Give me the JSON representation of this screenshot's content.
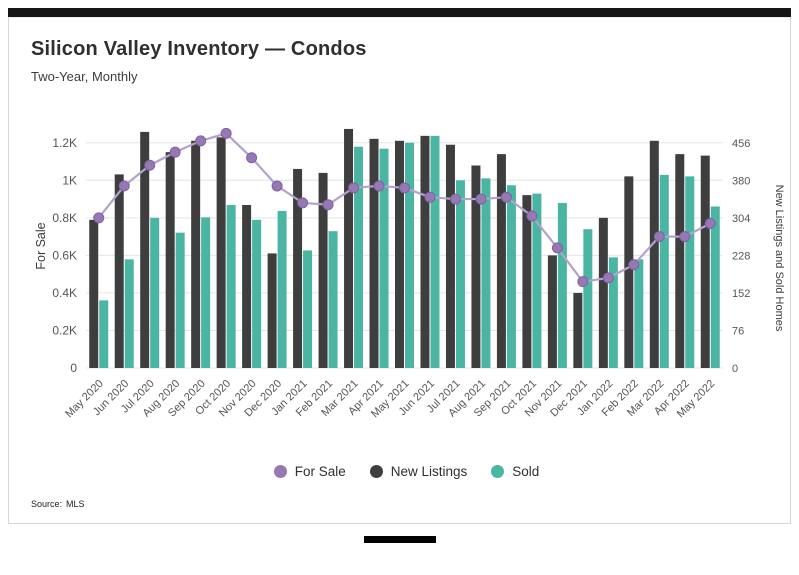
{
  "header": {
    "title": "Silicon Valley Inventory — Condos",
    "subtitle": "Two-Year, Monthly"
  },
  "legend": [
    {
      "key": "for_sale",
      "label": "For Sale"
    },
    {
      "key": "new_listings",
      "label": "New Listings"
    },
    {
      "key": "sold",
      "label": "Sold"
    }
  ],
  "source": {
    "label": "Source:",
    "value": "MLS"
  },
  "colors": {
    "for_sale_line": "#b4a1ce",
    "for_sale_marker": "#9678b4",
    "for_sale_stroke": "#7e639e",
    "new_listings": "#3e3e3e",
    "sold": "#4ab5a3",
    "grid": "#e4e4e4",
    "axis_text": "#555555"
  },
  "chart_data": {
    "type": "bar",
    "subtype": "bar+line combo, dual axis",
    "title": "Silicon Valley Inventory — Condos",
    "subtitle": "Two-Year, Monthly",
    "ylabel_left": "For Sale",
    "ylabel_right": "New Listings and Sold Homes",
    "categories": [
      "May 2020",
      "Jun 2020",
      "Jul 2020",
      "Aug 2020",
      "Sep 2020",
      "Oct 2020",
      "Nov 2020",
      "Dec 2020",
      "Jan 2021",
      "Feb 2021",
      "Mar 2021",
      "Apr 2021",
      "May 2021",
      "Jun 2021",
      "Jul 2021",
      "Aug 2021",
      "Sep 2021",
      "Oct 2021",
      "Nov 2021",
      "Dec 2021",
      "Jan 2022",
      "Feb 2022",
      "Mar 2022",
      "Apr 2022",
      "May 2022"
    ],
    "series": [
      {
        "name": "For Sale",
        "type": "line",
        "axis": "left",
        "color_key": "for_sale_marker",
        "values": [
          800,
          970,
          1080,
          1150,
          1210,
          1250,
          1120,
          970,
          880,
          870,
          960,
          970,
          960,
          910,
          900,
          900,
          910,
          810,
          640,
          460,
          480,
          550,
          700,
          700,
          770
        ]
      },
      {
        "name": "New Listings",
        "type": "bar",
        "axis": "right",
        "color_key": "new_listings",
        "values": [
          300,
          392,
          478,
          437,
          460,
          467,
          330,
          232,
          403,
          395,
          484,
          464,
          460,
          470,
          452,
          410,
          433,
          350,
          228,
          152,
          304,
          388,
          460,
          433,
          430
        ]
      },
      {
        "name": "Sold",
        "type": "bar",
        "axis": "right",
        "color_key": "sold",
        "values": [
          137,
          220,
          304,
          274,
          305,
          330,
          300,
          318,
          238,
          277,
          448,
          444,
          456,
          470,
          380,
          384,
          370,
          353,
          334,
          281,
          224,
          220,
          391,
          388,
          327
        ]
      }
    ],
    "left_axis": {
      "max": 1300,
      "tick_values": [
        0,
        200,
        400,
        600,
        800,
        1000,
        1200
      ],
      "tick_labels": [
        "0",
        "0.2K",
        "0.4K",
        "0.6K",
        "0.8K",
        "1K",
        "1.2K"
      ]
    },
    "right_axis": {
      "right_per_left": 0.38,
      "tick_labels": [
        "0",
        "76",
        "152",
        "228",
        "304",
        "380",
        "456"
      ]
    },
    "grid": "horizontal",
    "legend_position": "bottom"
  }
}
